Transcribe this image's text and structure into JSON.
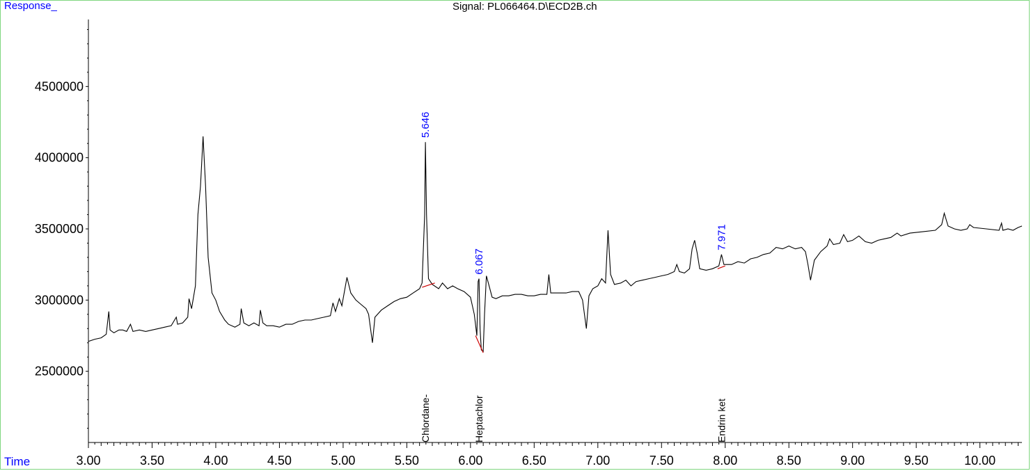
{
  "header": {
    "response_label": "Response_",
    "signal_title": "Signal: PL066464.D\\ECD2B.ch",
    "time_label": "Time"
  },
  "colors": {
    "trace": "#000000",
    "peak_label": "#0000ff",
    "baseline": "#cc0000",
    "frame": "#7fd67f"
  },
  "chart_data": {
    "type": "line",
    "title": "Signal: PL066464.D\\ECD2B.ch",
    "xlabel": "Time",
    "ylabel": "Response_",
    "xlim": [
      3.0,
      10.33
    ],
    "ylim": [
      2000000,
      5000000
    ],
    "x_ticks": [
      3.0,
      3.5,
      4.0,
      4.5,
      5.0,
      5.5,
      6.0,
      6.5,
      7.0,
      7.5,
      8.0,
      8.5,
      9.0,
      9.5,
      10.0
    ],
    "x_tick_labels": [
      "3.00",
      "3.50",
      "4.00",
      "4.50",
      "5.00",
      "5.50",
      "6.00",
      "6.50",
      "7.00",
      "7.50",
      "8.00",
      "8.50",
      "9.00",
      "9.50",
      "10.00"
    ],
    "y_ticks": [
      2500000,
      3000000,
      3500000,
      4000000,
      4500000
    ],
    "y_tick_labels": [
      "2500000",
      "3000000",
      "3500000",
      "4000000",
      "4500000"
    ],
    "series": [
      {
        "values": [
          [
            3.0,
            2710000
          ],
          [
            3.05,
            2725000
          ],
          [
            3.1,
            2735000
          ],
          [
            3.14,
            2760000
          ],
          [
            3.16,
            2920000
          ],
          [
            3.17,
            2790000
          ],
          [
            3.2,
            2770000
          ],
          [
            3.24,
            2790000
          ],
          [
            3.27,
            2790000
          ],
          [
            3.3,
            2780000
          ],
          [
            3.33,
            2830000
          ],
          [
            3.35,
            2780000
          ],
          [
            3.4,
            2790000
          ],
          [
            3.45,
            2780000
          ],
          [
            3.5,
            2790000
          ],
          [
            3.55,
            2800000
          ],
          [
            3.6,
            2810000
          ],
          [
            3.65,
            2820000
          ],
          [
            3.69,
            2880000
          ],
          [
            3.7,
            2830000
          ],
          [
            3.74,
            2840000
          ],
          [
            3.78,
            2880000
          ],
          [
            3.79,
            3010000
          ],
          [
            3.81,
            2940000
          ],
          [
            3.84,
            3100000
          ],
          [
            3.86,
            3600000
          ],
          [
            3.88,
            3800000
          ],
          [
            3.9,
            4150000
          ],
          [
            3.92,
            3800000
          ],
          [
            3.94,
            3300000
          ],
          [
            3.97,
            3050000
          ],
          [
            4.0,
            3000000
          ],
          [
            4.03,
            2920000
          ],
          [
            4.07,
            2860000
          ],
          [
            4.1,
            2830000
          ],
          [
            4.15,
            2810000
          ],
          [
            4.19,
            2830000
          ],
          [
            4.2,
            2940000
          ],
          [
            4.22,
            2840000
          ],
          [
            4.26,
            2820000
          ],
          [
            4.3,
            2840000
          ],
          [
            4.34,
            2820000
          ],
          [
            4.35,
            2930000
          ],
          [
            4.37,
            2840000
          ],
          [
            4.4,
            2820000
          ],
          [
            4.45,
            2820000
          ],
          [
            4.5,
            2810000
          ],
          [
            4.55,
            2830000
          ],
          [
            4.6,
            2830000
          ],
          [
            4.65,
            2850000
          ],
          [
            4.7,
            2860000
          ],
          [
            4.75,
            2860000
          ],
          [
            4.8,
            2870000
          ],
          [
            4.85,
            2880000
          ],
          [
            4.9,
            2890000
          ],
          [
            4.92,
            2980000
          ],
          [
            4.94,
            2920000
          ],
          [
            4.97,
            3010000
          ],
          [
            4.99,
            2960000
          ],
          [
            5.03,
            3160000
          ],
          [
            5.06,
            3050000
          ],
          [
            5.1,
            3000000
          ],
          [
            5.14,
            2970000
          ],
          [
            5.18,
            2940000
          ],
          [
            5.2,
            2900000
          ],
          [
            5.23,
            2700000
          ],
          [
            5.25,
            2880000
          ],
          [
            5.3,
            2930000
          ],
          [
            5.35,
            2960000
          ],
          [
            5.4,
            2990000
          ],
          [
            5.45,
            3010000
          ],
          [
            5.5,
            3020000
          ],
          [
            5.55,
            3050000
          ],
          [
            5.6,
            3080000
          ],
          [
            5.62,
            3120000
          ],
          [
            5.64,
            3600000
          ],
          [
            5.646,
            4110000
          ],
          [
            5.655,
            3600000
          ],
          [
            5.67,
            3150000
          ],
          [
            5.7,
            3110000
          ],
          [
            5.75,
            3080000
          ],
          [
            5.78,
            3120000
          ],
          [
            5.82,
            3080000
          ],
          [
            5.86,
            3100000
          ],
          [
            5.9,
            3080000
          ],
          [
            5.95,
            3060000
          ],
          [
            6.0,
            3020000
          ],
          [
            6.03,
            2900000
          ],
          [
            6.05,
            2750000
          ],
          [
            6.06,
            3130000
          ],
          [
            6.067,
            3150000
          ],
          [
            6.075,
            2800000
          ],
          [
            6.085,
            2650000
          ],
          [
            6.1,
            2640000
          ],
          [
            6.11,
            2900000
          ],
          [
            6.125,
            3170000
          ],
          [
            6.14,
            3120000
          ],
          [
            6.17,
            3020000
          ],
          [
            6.2,
            3010000
          ],
          [
            6.25,
            3030000
          ],
          [
            6.3,
            3030000
          ],
          [
            6.35,
            3040000
          ],
          [
            6.4,
            3040000
          ],
          [
            6.45,
            3030000
          ],
          [
            6.5,
            3030000
          ],
          [
            6.55,
            3040000
          ],
          [
            6.6,
            3040000
          ],
          [
            6.615,
            3180000
          ],
          [
            6.63,
            3050000
          ],
          [
            6.7,
            3050000
          ],
          [
            6.75,
            3050000
          ],
          [
            6.8,
            3060000
          ],
          [
            6.85,
            3060000
          ],
          [
            6.88,
            3000000
          ],
          [
            6.91,
            2800000
          ],
          [
            6.93,
            3030000
          ],
          [
            6.96,
            3080000
          ],
          [
            7.0,
            3100000
          ],
          [
            7.03,
            3150000
          ],
          [
            7.06,
            3120000
          ],
          [
            7.08,
            3490000
          ],
          [
            7.1,
            3180000
          ],
          [
            7.13,
            3110000
          ],
          [
            7.18,
            3120000
          ],
          [
            7.22,
            3140000
          ],
          [
            7.26,
            3100000
          ],
          [
            7.3,
            3130000
          ],
          [
            7.35,
            3140000
          ],
          [
            7.4,
            3150000
          ],
          [
            7.45,
            3160000
          ],
          [
            7.5,
            3170000
          ],
          [
            7.55,
            3180000
          ],
          [
            7.6,
            3200000
          ],
          [
            7.62,
            3250000
          ],
          [
            7.64,
            3200000
          ],
          [
            7.68,
            3190000
          ],
          [
            7.72,
            3220000
          ],
          [
            7.74,
            3360000
          ],
          [
            7.76,
            3420000
          ],
          [
            7.78,
            3330000
          ],
          [
            7.8,
            3220000
          ],
          [
            7.85,
            3210000
          ],
          [
            7.9,
            3220000
          ],
          [
            7.95,
            3240000
          ],
          [
            7.971,
            3320000
          ],
          [
            7.99,
            3250000
          ],
          [
            8.05,
            3250000
          ],
          [
            8.1,
            3270000
          ],
          [
            8.15,
            3260000
          ],
          [
            8.2,
            3290000
          ],
          [
            8.25,
            3300000
          ],
          [
            8.3,
            3320000
          ],
          [
            8.35,
            3330000
          ],
          [
            8.4,
            3370000
          ],
          [
            8.45,
            3360000
          ],
          [
            8.5,
            3380000
          ],
          [
            8.55,
            3360000
          ],
          [
            8.6,
            3370000
          ],
          [
            8.63,
            3340000
          ],
          [
            8.65,
            3250000
          ],
          [
            8.67,
            3140000
          ],
          [
            8.7,
            3280000
          ],
          [
            8.75,
            3340000
          ],
          [
            8.8,
            3380000
          ],
          [
            8.82,
            3430000
          ],
          [
            8.85,
            3390000
          ],
          [
            8.9,
            3400000
          ],
          [
            8.93,
            3460000
          ],
          [
            8.96,
            3410000
          ],
          [
            9.0,
            3420000
          ],
          [
            9.05,
            3450000
          ],
          [
            9.1,
            3410000
          ],
          [
            9.15,
            3400000
          ],
          [
            9.2,
            3420000
          ],
          [
            9.25,
            3430000
          ],
          [
            9.3,
            3440000
          ],
          [
            9.35,
            3470000
          ],
          [
            9.38,
            3450000
          ],
          [
            9.45,
            3470000
          ],
          [
            9.55,
            3480000
          ],
          [
            9.65,
            3490000
          ],
          [
            9.7,
            3530000
          ],
          [
            9.72,
            3610000
          ],
          [
            9.75,
            3520000
          ],
          [
            9.8,
            3500000
          ],
          [
            9.85,
            3490000
          ],
          [
            9.9,
            3500000
          ],
          [
            9.92,
            3530000
          ],
          [
            9.95,
            3510000
          ],
          [
            10.05,
            3500000
          ],
          [
            10.15,
            3490000
          ],
          [
            10.17,
            3540000
          ],
          [
            10.18,
            3490000
          ],
          [
            10.22,
            3500000
          ],
          [
            10.26,
            3490000
          ],
          [
            10.3,
            3510000
          ],
          [
            10.33,
            3520000
          ]
        ]
      }
    ],
    "baselines": [
      [
        [
          5.62,
          3090000
        ],
        [
          5.72,
          3120000
        ]
      ],
      [
        [
          6.04,
          2750000
        ],
        [
          6.1,
          2630000
        ]
      ],
      [
        [
          7.94,
          3220000
        ],
        [
          8.0,
          3240000
        ]
      ]
    ],
    "peak_labels": [
      {
        "x": 5.646,
        "y": 4110000,
        "text": "5.646"
      },
      {
        "x": 6.067,
        "y": 3150000,
        "text": "6.067"
      },
      {
        "x": 7.971,
        "y": 3320000,
        "text": "7.971"
      }
    ],
    "compound_labels": [
      {
        "x": 5.646,
        "text": "Chlordane-"
      },
      {
        "x": 6.067,
        "text": "Heptachlor"
      },
      {
        "x": 7.971,
        "text": "Endrin ket"
      }
    ],
    "grid": false
  }
}
